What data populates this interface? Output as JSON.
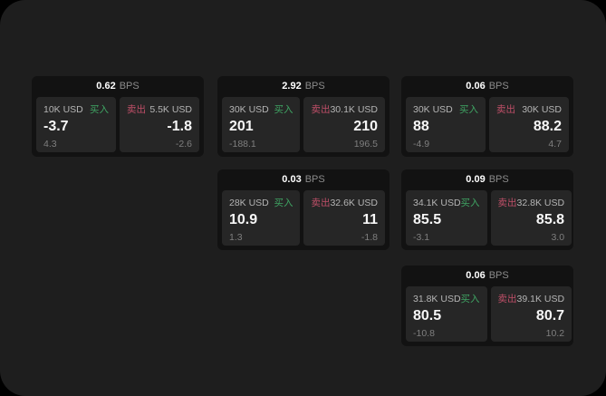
{
  "labels": {
    "bps_unit": "BPS",
    "buy": "买入",
    "sell": "卖出"
  },
  "colors": {
    "background": "#000000",
    "surface": "#1e1e1e",
    "card_bg": "#121212",
    "panel_bg": "#262626",
    "buy_green": "#3fa463",
    "sell_red": "#bf4f68",
    "value_white": "#f7f7f7",
    "muted_gray": "#7f7f7f"
  },
  "cards": [
    {
      "bps": "0.62",
      "buy": {
        "notional": "10K USD",
        "value": "-3.7",
        "sub": "4.3"
      },
      "sell": {
        "notional": "5.5K USD",
        "value": "-1.8",
        "sub": "-2.6"
      }
    },
    {
      "bps": "2.92",
      "buy": {
        "notional": "30K USD",
        "value": "201",
        "sub": "-188.1"
      },
      "sell": {
        "notional": "30.1K USD",
        "value": "210",
        "sub": "196.5"
      }
    },
    {
      "bps": "0.06",
      "buy": {
        "notional": "30K USD",
        "value": "88",
        "sub": "-4.9"
      },
      "sell": {
        "notional": "30K USD",
        "value": "88.2",
        "sub": "4.7"
      }
    },
    {
      "bps": "0.03",
      "buy": {
        "notional": "28K USD",
        "value": "10.9",
        "sub": "1.3"
      },
      "sell": {
        "notional": "32.6K USD",
        "value": "11",
        "sub": "-1.8"
      }
    },
    {
      "bps": "0.09",
      "buy": {
        "notional": "34.1K USD",
        "value": "85.5",
        "sub": "-3.1"
      },
      "sell": {
        "notional": "32.8K USD",
        "value": "85.8",
        "sub": "3.0"
      }
    },
    {
      "bps": "0.06",
      "buy": {
        "notional": "31.8K USD",
        "value": "80.5",
        "sub": "-10.8"
      },
      "sell": {
        "notional": "39.1K USD",
        "value": "80.7",
        "sub": "10.2"
      }
    }
  ]
}
